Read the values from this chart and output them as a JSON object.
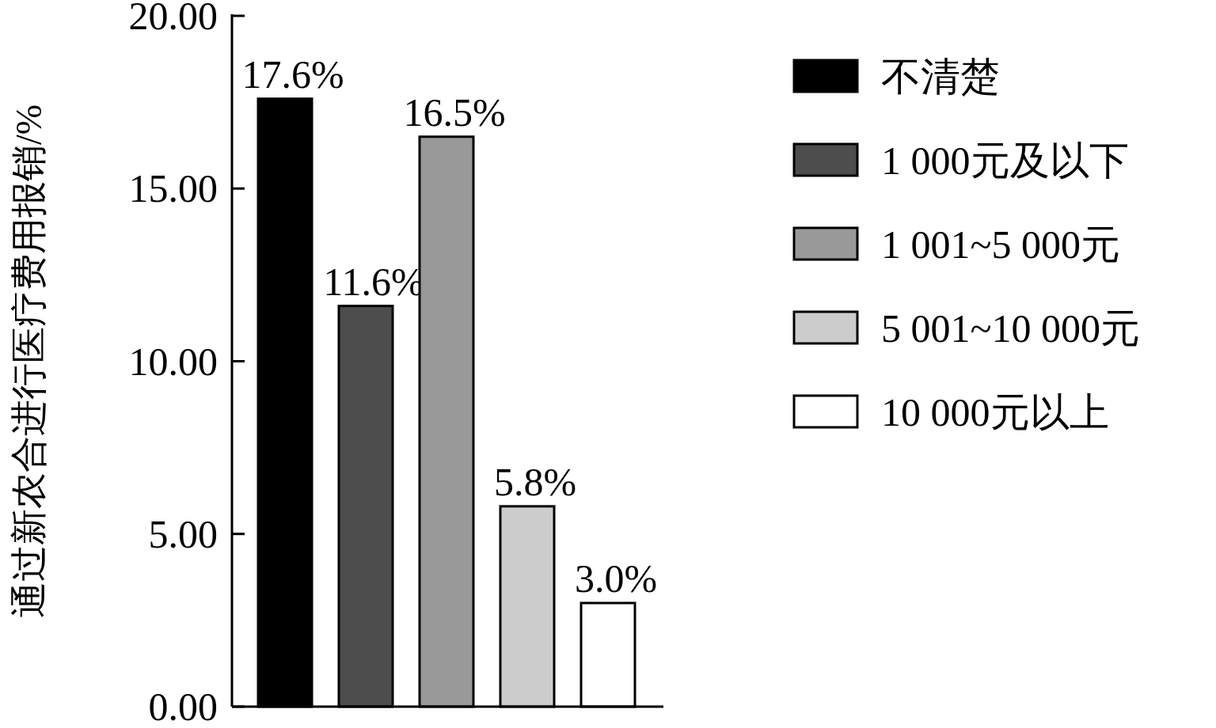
{
  "chart_data": {
    "type": "bar",
    "ylabel": "通过新农合进行医疗费用报销/%",
    "categories": [
      null,
      null,
      null,
      null,
      null
    ],
    "series": [
      {
        "name": "不清楚",
        "color": "#000000",
        "values": [
          17.6,
          null,
          null,
          null,
          null
        ],
        "value_labels": [
          "17.6%",
          null,
          null,
          null,
          null
        ]
      },
      {
        "name": "1 000元及以下",
        "color": "#4d4d4d",
        "values": [
          null,
          11.6,
          null,
          null,
          null
        ],
        "value_labels": [
          null,
          "11.6%",
          null,
          null,
          null
        ]
      },
      {
        "name": "1 001~5 000元",
        "color": "#999999",
        "values": [
          null,
          null,
          16.5,
          null,
          null
        ],
        "value_labels": [
          null,
          null,
          "16.5%",
          null,
          null
        ]
      },
      {
        "name": "5 001~10 000元",
        "color": "#cccccc",
        "values": [
          null,
          null,
          null,
          5.8,
          null
        ],
        "value_labels": [
          null,
          null,
          null,
          "5.8%",
          null
        ]
      },
      {
        "name": "10 000元以上",
        "color": "#ffffff",
        "values": [
          null,
          null,
          null,
          null,
          3.0
        ],
        "value_labels": [
          null,
          null,
          null,
          null,
          "3.0%"
        ]
      }
    ],
    "ylim": [
      0,
      20
    ],
    "yticks": [
      {
        "value": 0,
        "label": "0.00"
      },
      {
        "value": 5,
        "label": "5.00"
      },
      {
        "value": 10,
        "label": "10.00"
      },
      {
        "value": 15,
        "label": "15.00"
      },
      {
        "value": 20,
        "label": "20.00"
      }
    ],
    "legend": "right",
    "tick_labels": "y",
    "grid": false
  }
}
